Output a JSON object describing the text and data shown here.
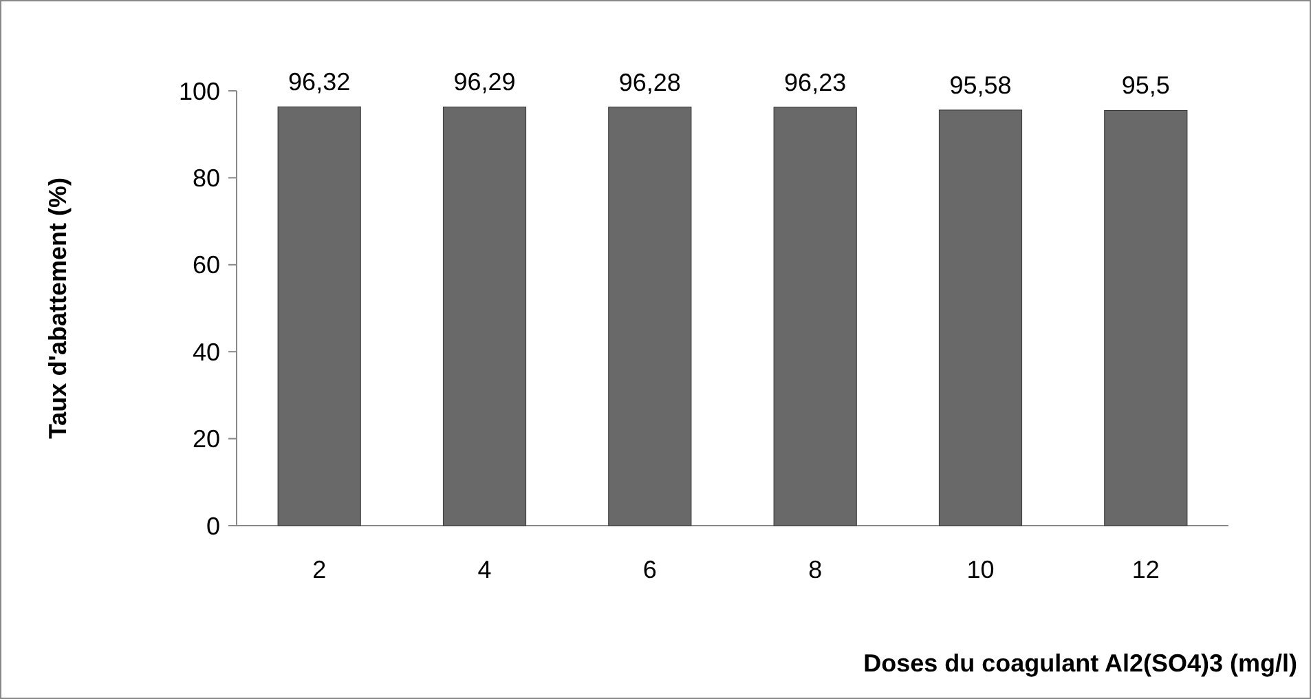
{
  "chart_data": {
    "type": "bar",
    "xlabel": "Doses du coagulant Al2(SO4)3 (mg/l)",
    "ylabel": "Taux d'abattement (%)",
    "categories": [
      "2",
      "4",
      "6",
      "8",
      "10",
      "12"
    ],
    "values": [
      96.32,
      96.29,
      96.28,
      96.23,
      95.58,
      95.5
    ],
    "value_labels": [
      "96,32",
      "96,29",
      "96,28",
      "96,23",
      "95,58",
      "95,5"
    ],
    "color": "#696969",
    "ylim": [
      0,
      100
    ],
    "yticks": [
      0,
      20,
      40,
      60,
      80,
      100
    ],
    "grid": false
  }
}
